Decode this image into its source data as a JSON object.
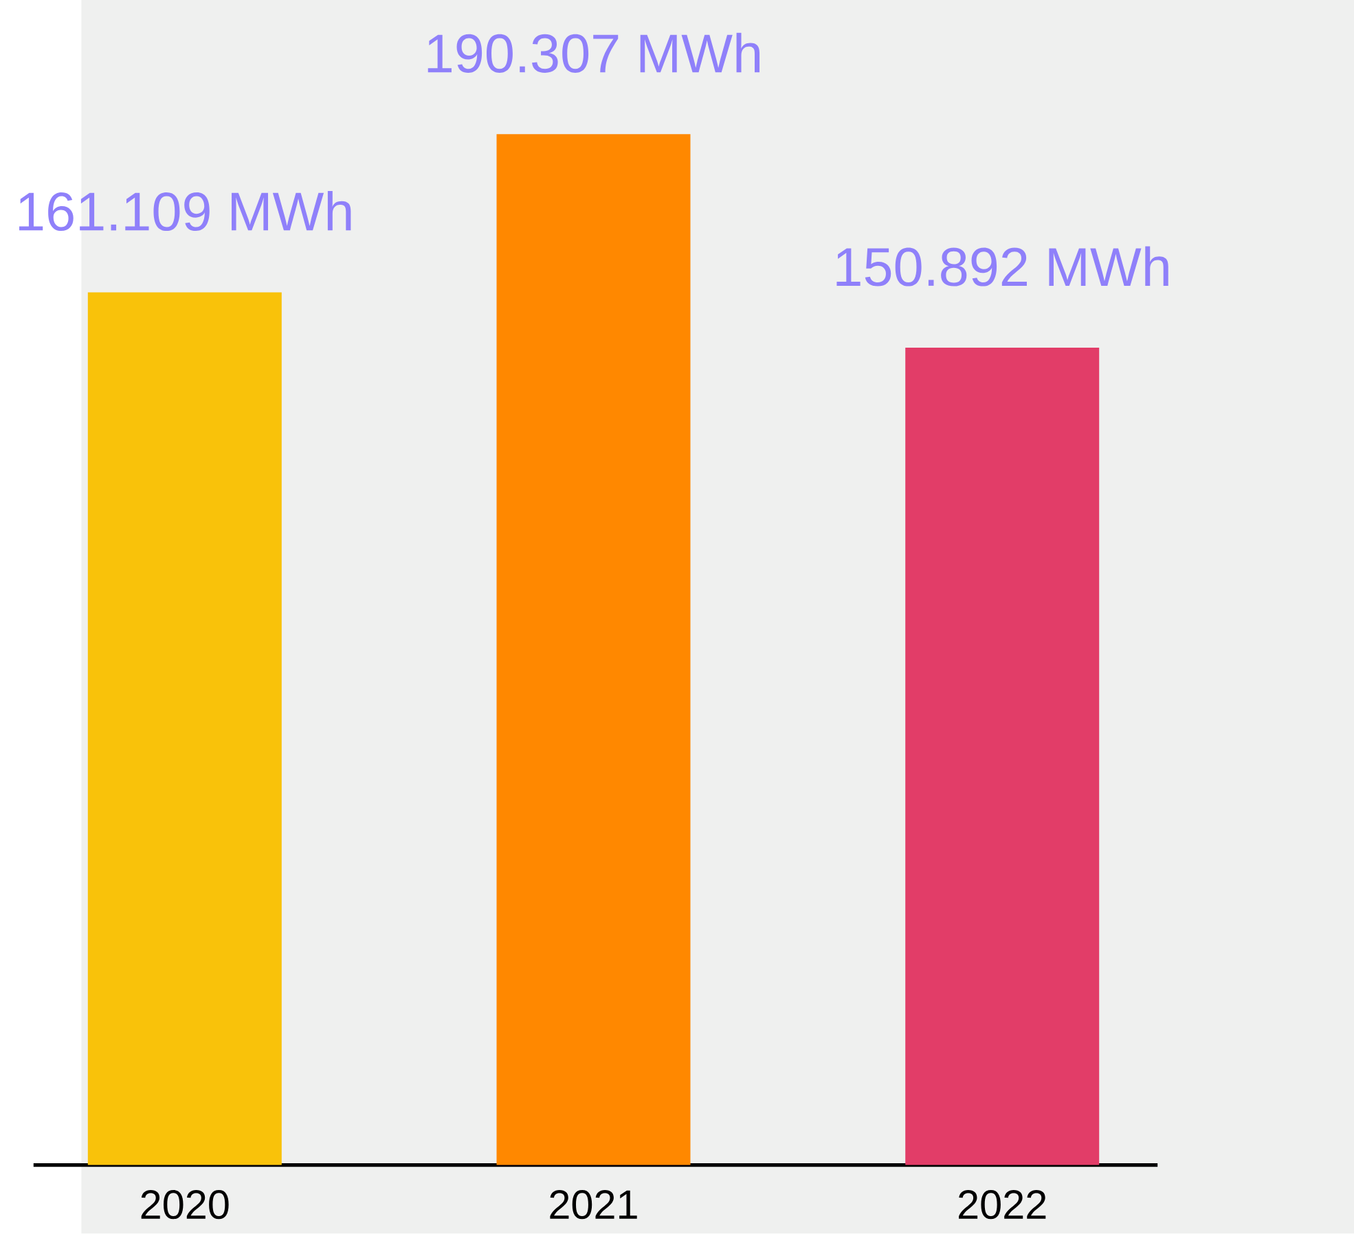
{
  "chart_data": {
    "type": "bar",
    "categories": [
      "2020",
      "2021",
      "2022"
    ],
    "values": [
      161.109,
      190.307,
      150.892
    ],
    "colors": [
      "#f9c20a",
      "#ff8800",
      "#e23d68"
    ],
    "value_labels": [
      "161.109 MWh",
      "190.307 MWh",
      "150.892 MWh"
    ]
  }
}
